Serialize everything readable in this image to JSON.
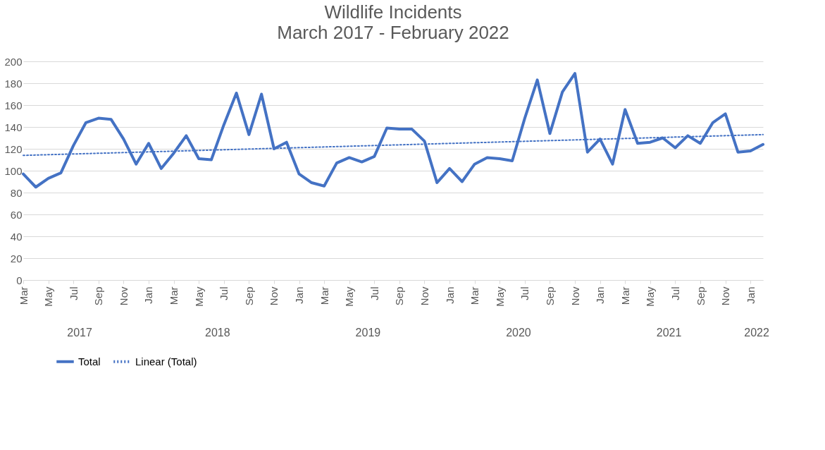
{
  "chart_data": {
    "type": "line",
    "title": "Wildlife Incidents",
    "subtitle": "March 2017 - February 2022",
    "x": [
      "2017-03",
      "2017-04",
      "2017-05",
      "2017-06",
      "2017-07",
      "2017-08",
      "2017-09",
      "2017-10",
      "2017-11",
      "2017-12",
      "2018-01",
      "2018-02",
      "2018-03",
      "2018-04",
      "2018-05",
      "2018-06",
      "2018-07",
      "2018-08",
      "2018-09",
      "2018-10",
      "2018-11",
      "2018-12",
      "2019-01",
      "2019-02",
      "2019-03",
      "2019-04",
      "2019-05",
      "2019-06",
      "2019-07",
      "2019-08",
      "2019-09",
      "2019-10",
      "2019-11",
      "2019-12",
      "2020-01",
      "2020-02",
      "2020-03",
      "2020-04",
      "2020-05",
      "2020-06",
      "2020-07",
      "2020-08",
      "2020-09",
      "2020-10",
      "2020-11",
      "2020-12",
      "2021-01",
      "2021-02",
      "2021-03",
      "2021-04",
      "2021-05",
      "2021-06",
      "2021-07",
      "2021-08",
      "2021-09",
      "2021-10",
      "2021-11",
      "2021-12",
      "2022-01",
      "2022-02"
    ],
    "series": [
      {
        "name": "Total",
        "color": "#4472c4",
        "line_style": "solid",
        "values": [
          97,
          85,
          93,
          98,
          123,
          144,
          148,
          147,
          129,
          106,
          125,
          102,
          116,
          132,
          111,
          110,
          142,
          171,
          133,
          170,
          120,
          126,
          97,
          89,
          86,
          107,
          112,
          108,
          113,
          139,
          138,
          138,
          127,
          89,
          102,
          90,
          106,
          112,
          111,
          109,
          148,
          183,
          134,
          172,
          189,
          117,
          129,
          106,
          156,
          125,
          126,
          130,
          121,
          132,
          125,
          144,
          152,
          117,
          118,
          124
        ]
      },
      {
        "name": "Linear (Total)",
        "color": "#4472c4",
        "line_style": "dotted",
        "x": [
          "2017-03",
          "2022-02"
        ],
        "values": [
          114,
          133
        ]
      }
    ],
    "ylim": [
      0,
      200
    ],
    "yticks": [
      0,
      20,
      40,
      60,
      80,
      100,
      120,
      140,
      160,
      180,
      200
    ],
    "xticks": [
      {
        "value": "2017-03",
        "label": "Mar"
      },
      {
        "value": "2017-05",
        "label": "May"
      },
      {
        "value": "2017-07",
        "label": "Jul"
      },
      {
        "value": "2017-09",
        "label": "Sep"
      },
      {
        "value": "2017-11",
        "label": "Nov"
      },
      {
        "value": "2018-01",
        "label": "Jan"
      },
      {
        "value": "2018-03",
        "label": "Mar"
      },
      {
        "value": "2018-05",
        "label": "May"
      },
      {
        "value": "2018-07",
        "label": "Jul"
      },
      {
        "value": "2018-09",
        "label": "Sep"
      },
      {
        "value": "2018-11",
        "label": "Nov"
      },
      {
        "value": "2019-01",
        "label": "Jan"
      },
      {
        "value": "2019-03",
        "label": "Mar"
      },
      {
        "value": "2019-05",
        "label": "May"
      },
      {
        "value": "2019-07",
        "label": "Jul"
      },
      {
        "value": "2019-09",
        "label": "Sep"
      },
      {
        "value": "2019-11",
        "label": "Nov"
      },
      {
        "value": "2020-01",
        "label": "Jan"
      },
      {
        "value": "2020-03",
        "label": "Mar"
      },
      {
        "value": "2020-05",
        "label": "May"
      },
      {
        "value": "2020-07",
        "label": "Jul"
      },
      {
        "value": "2020-09",
        "label": "Sep"
      },
      {
        "value": "2020-11",
        "label": "Nov"
      },
      {
        "value": "2021-01",
        "label": "Jan"
      },
      {
        "value": "2021-03",
        "label": "Mar"
      },
      {
        "value": "2021-05",
        "label": "May"
      },
      {
        "value": "2021-07",
        "label": "Jul"
      },
      {
        "value": "2021-09",
        "label": "Sep"
      },
      {
        "value": "2021-11",
        "label": "Nov"
      },
      {
        "value": "2022-01",
        "label": "Jan"
      }
    ],
    "annotations": [
      "2017",
      "2018",
      "2019",
      "2020",
      "2021",
      "2022"
    ],
    "xlim": [
      "2017-03",
      "2022-02"
    ],
    "grid": "y",
    "legend": "bottom",
    "marker": "none"
  }
}
